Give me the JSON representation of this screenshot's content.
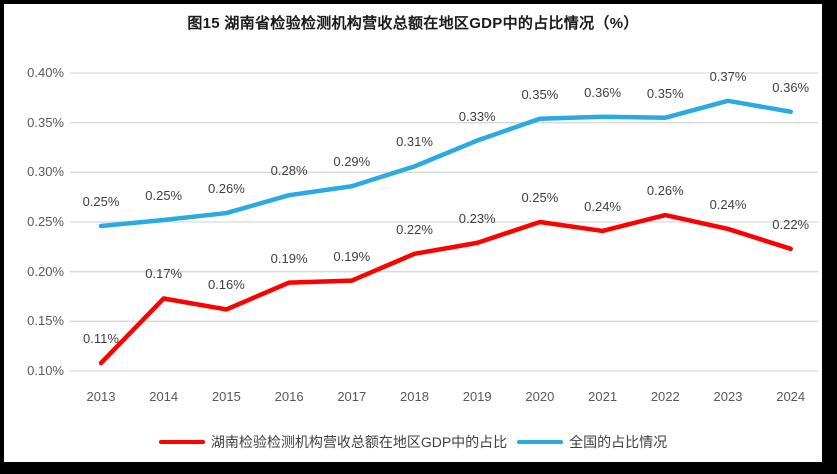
{
  "title": "图15 湖南省检验检测机构营收总额在地区GDP中的占比情况（%）",
  "colors": {
    "hunan_line": "#fe0000",
    "national_line": "#29abe2",
    "gridline": "#d9d9d9",
    "tick_text": "#595959",
    "data_label_text": "#404040",
    "frame_border": "#000000",
    "background": "#ffffff"
  },
  "chart_data": {
    "type": "line",
    "title": "图15 湖南省检验检测机构营收总额在地区GDP中的占比情况（%）",
    "categories": [
      "2013",
      "2014",
      "2015",
      "2016",
      "2017",
      "2018",
      "2019",
      "2020",
      "2021",
      "2022",
      "2023",
      "2024"
    ],
    "series": [
      {
        "name": "湖南检验检测机构营收总额在地区GDP中的占比",
        "color": "#fe0000",
        "values": [
          0.11,
          0.17,
          0.16,
          0.19,
          0.19,
          0.22,
          0.23,
          0.25,
          0.24,
          0.26,
          0.24,
          0.22
        ],
        "labels": [
          "0.11%",
          "0.17%",
          "0.16%",
          "0.19%",
          "0.19%",
          "0.22%",
          "0.23%",
          "0.25%",
          "0.24%",
          "0.26%",
          "0.24%",
          "0.22%"
        ],
        "plot_values": [
          0.108,
          0.173,
          0.162,
          0.189,
          0.191,
          0.218,
          0.229,
          0.25,
          0.241,
          0.257,
          0.243,
          0.223
        ]
      },
      {
        "name": "全国的占比情况",
        "color": "#29abe2",
        "values": [
          0.25,
          0.25,
          0.26,
          0.28,
          0.29,
          0.31,
          0.33,
          0.35,
          0.36,
          0.35,
          0.37,
          0.36
        ],
        "labels": [
          "0.25%",
          "0.25%",
          "0.26%",
          "0.28%",
          "0.29%",
          "0.31%",
          "0.33%",
          "0.35%",
          "0.36%",
          "0.35%",
          "0.37%",
          "0.36%"
        ],
        "plot_values": [
          0.246,
          0.252,
          0.259,
          0.277,
          0.286,
          0.306,
          0.332,
          0.354,
          0.356,
          0.355,
          0.372,
          0.361
        ]
      }
    ],
    "xlabel": "",
    "ylabel": "",
    "y_ticks": [
      "0.40%",
      "0.35%",
      "0.30%",
      "0.25%",
      "0.20%",
      "0.15%",
      "0.10%"
    ],
    "y_tick_values": [
      0.4,
      0.35,
      0.3,
      0.25,
      0.2,
      0.15,
      0.1
    ],
    "ylim": [
      0.1,
      0.4
    ],
    "grid": true,
    "legend_position": "bottom"
  }
}
